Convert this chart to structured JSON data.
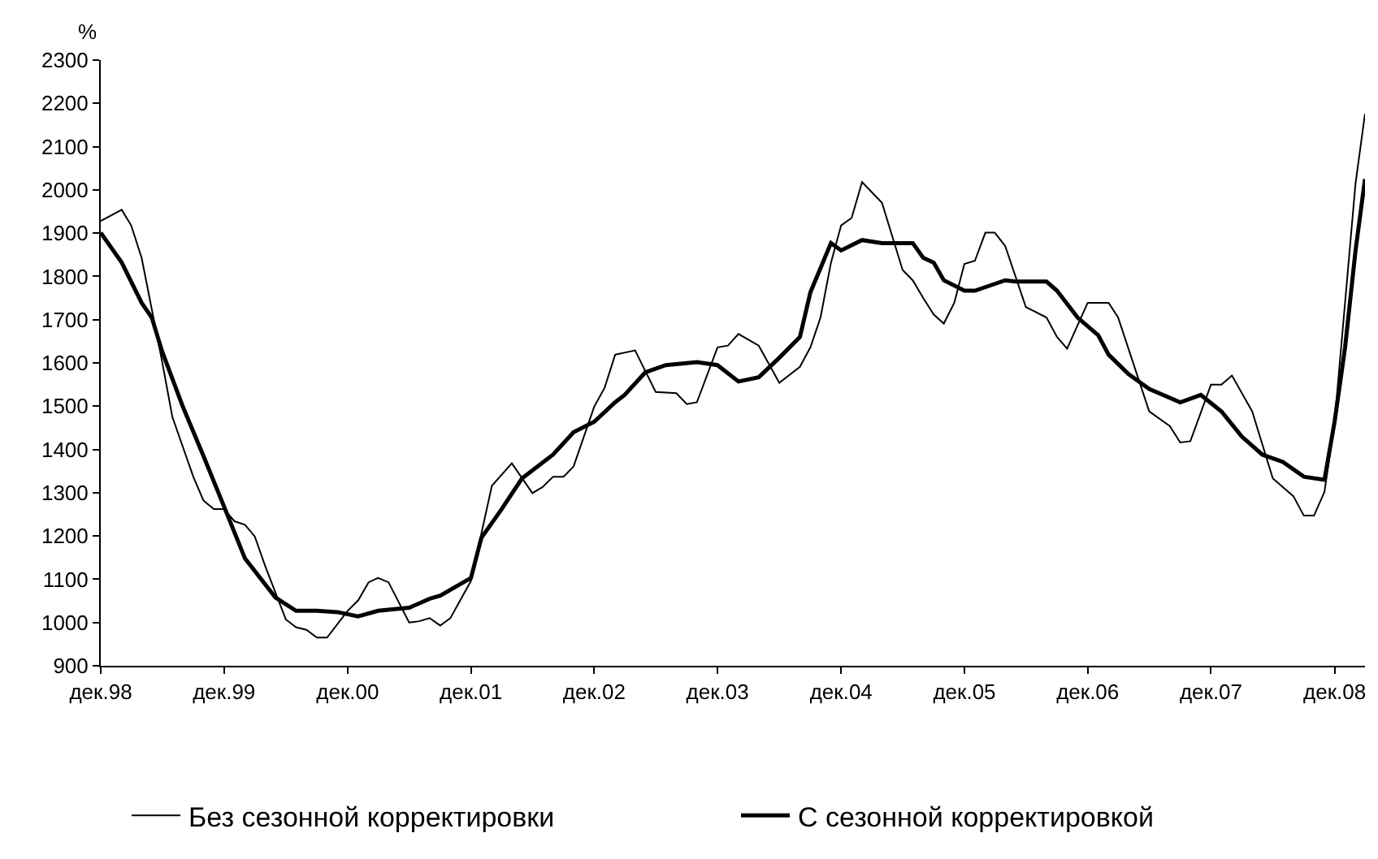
{
  "chart_data": {
    "type": "line",
    "ylabel": "%",
    "legend": "bottom",
    "xlim": [
      "1998-12",
      "2009-03"
    ],
    "xticks": [
      {
        "value": "1998-12",
        "label": "дек.98"
      },
      {
        "value": "1999-12",
        "label": "дек.99"
      },
      {
        "value": "2000-12",
        "label": "дек.00"
      },
      {
        "value": "2001-12",
        "label": "дек.01"
      },
      {
        "value": "2002-12",
        "label": "дек.02"
      },
      {
        "value": "2003-12",
        "label": "дек.03"
      },
      {
        "value": "2004-12",
        "label": "дек.04"
      },
      {
        "value": "2005-12",
        "label": "дек.05"
      },
      {
        "value": "2006-12",
        "label": "дек.06"
      },
      {
        "value": "2007-12",
        "label": "дек.07"
      },
      {
        "value": "2008-12",
        "label": "дек.08"
      }
    ],
    "ylim": [
      900,
      2300
    ],
    "yticks": [
      900,
      1000,
      1100,
      1200,
      1300,
      1400,
      1500,
      1600,
      1700,
      1800,
      1900,
      2000,
      2100,
      2200,
      2300
    ],
    "series": [
      {
        "name": "Без сезонной корректировки",
        "color": "#000000",
        "x": [
          "1998-12",
          "1999-02",
          "1999-03",
          "1999-04",
          "1999-06",
          "1999-07",
          "1999-09",
          "1999-10",
          "1999-11",
          "1999-12",
          "2000-01",
          "2000-02",
          "2000-03",
          "2000-04",
          "2000-06",
          "2000-07",
          "2000-08",
          "2000-09",
          "2000-10",
          "2000-12",
          "2001-01",
          "2001-02",
          "2001-03",
          "2001-04",
          "2001-06",
          "2001-07",
          "2001-08",
          "2001-09",
          "2001-10",
          "2001-12",
          "2002-02",
          "2002-04",
          "2002-06",
          "2002-07",
          "2002-08",
          "2002-09",
          "2002-10",
          "2002-12",
          "2003-01",
          "2003-02",
          "2003-04",
          "2003-06",
          "2003-08",
          "2003-09",
          "2003-10",
          "2003-12",
          "2004-01",
          "2004-02",
          "2004-04",
          "2004-06",
          "2004-08",
          "2004-09",
          "2004-10",
          "2004-11",
          "2004-12",
          "2005-01",
          "2005-02",
          "2005-04",
          "2005-06",
          "2005-07",
          "2005-08",
          "2005-09",
          "2005-10",
          "2005-11",
          "2005-12",
          "2006-01",
          "2006-02",
          "2006-03",
          "2006-04",
          "2006-06",
          "2006-08",
          "2006-09",
          "2006-10",
          "2006-12",
          "2007-02",
          "2007-03",
          "2007-06",
          "2007-08",
          "2007-09",
          "2007-10",
          "2007-12",
          "2008-01",
          "2008-02",
          "2008-04",
          "2008-06",
          "2008-08",
          "2008-09",
          "2008-10",
          "2008-11",
          "2008-12",
          "2009-02",
          "2009-03"
        ],
        "values": [
          1928,
          1954,
          1918,
          1843,
          1602,
          1475,
          1337,
          1282,
          1262,
          1262,
          1234,
          1226,
          1199,
          1130,
          1007,
          989,
          983,
          965,
          965,
          1027,
          1051,
          1093,
          1103,
          1093,
          1000,
          1003,
          1010,
          993,
          1010,
          1096,
          1316,
          1368,
          1299,
          1313,
          1337,
          1337,
          1361,
          1499,
          1543,
          1619,
          1629,
          1533,
          1530,
          1505,
          1509,
          1636,
          1640,
          1667,
          1640,
          1554,
          1591,
          1636,
          1705,
          1832,
          1918,
          1935,
          2018,
          1970,
          1815,
          1791,
          1750,
          1712,
          1691,
          1739,
          1829,
          1836,
          1901,
          1901,
          1870,
          1729,
          1705,
          1660,
          1633,
          1739,
          1739,
          1705,
          1488,
          1454,
          1416,
          1419,
          1550,
          1550,
          1571,
          1488,
          1333,
          1292,
          1247,
          1247,
          1302,
          1464,
          2015,
          2176
        ]
      },
      {
        "name": "С сезонной корректировкой",
        "color": "#000000",
        "x": [
          "1998-12",
          "1999-02",
          "1999-04",
          "1999-05",
          "1999-06",
          "1999-08",
          "1999-10",
          "1999-12",
          "2000-02",
          "2000-05",
          "2000-07",
          "2000-09",
          "2000-11",
          "2001-01",
          "2001-03",
          "2001-06",
          "2001-08",
          "2001-09",
          "2001-12",
          "2002-01",
          "2002-03",
          "2002-05",
          "2002-08",
          "2002-10",
          "2002-12",
          "2003-02",
          "2003-03",
          "2003-05",
          "2003-07",
          "2003-10",
          "2003-12",
          "2004-02",
          "2004-04",
          "2004-06",
          "2004-08",
          "2004-09",
          "2004-11",
          "2004-12",
          "2005-02",
          "2005-04",
          "2005-07",
          "2005-08",
          "2005-09",
          "2005-10",
          "2005-12",
          "2006-01",
          "2006-04",
          "2006-05",
          "2006-08",
          "2006-09",
          "2006-11",
          "2007-01",
          "2007-02",
          "2007-04",
          "2007-06",
          "2007-09",
          "2007-11",
          "2008-01",
          "2008-03",
          "2008-05",
          "2008-07",
          "2008-09",
          "2008-11",
          "2008-12",
          "2009-01",
          "2009-02",
          "2009-03"
        ],
        "values": [
          1901,
          1832,
          1739,
          1705,
          1626,
          1499,
          1385,
          1268,
          1148,
          1058,
          1027,
          1027,
          1024,
          1014,
          1027,
          1034,
          1055,
          1062,
          1103,
          1196,
          1261,
          1333,
          1388,
          1440,
          1464,
          1509,
          1526,
          1578,
          1595,
          1602,
          1595,
          1557,
          1567,
          1612,
          1660,
          1763,
          1877,
          1860,
          1884,
          1877,
          1877,
          1843,
          1832,
          1791,
          1767,
          1767,
          1791,
          1788,
          1788,
          1767,
          1705,
          1664,
          1619,
          1574,
          1540,
          1509,
          1526,
          1488,
          1430,
          1388,
          1371,
          1337,
          1330,
          1464,
          1636,
          1860,
          2025
        ]
      }
    ]
  }
}
